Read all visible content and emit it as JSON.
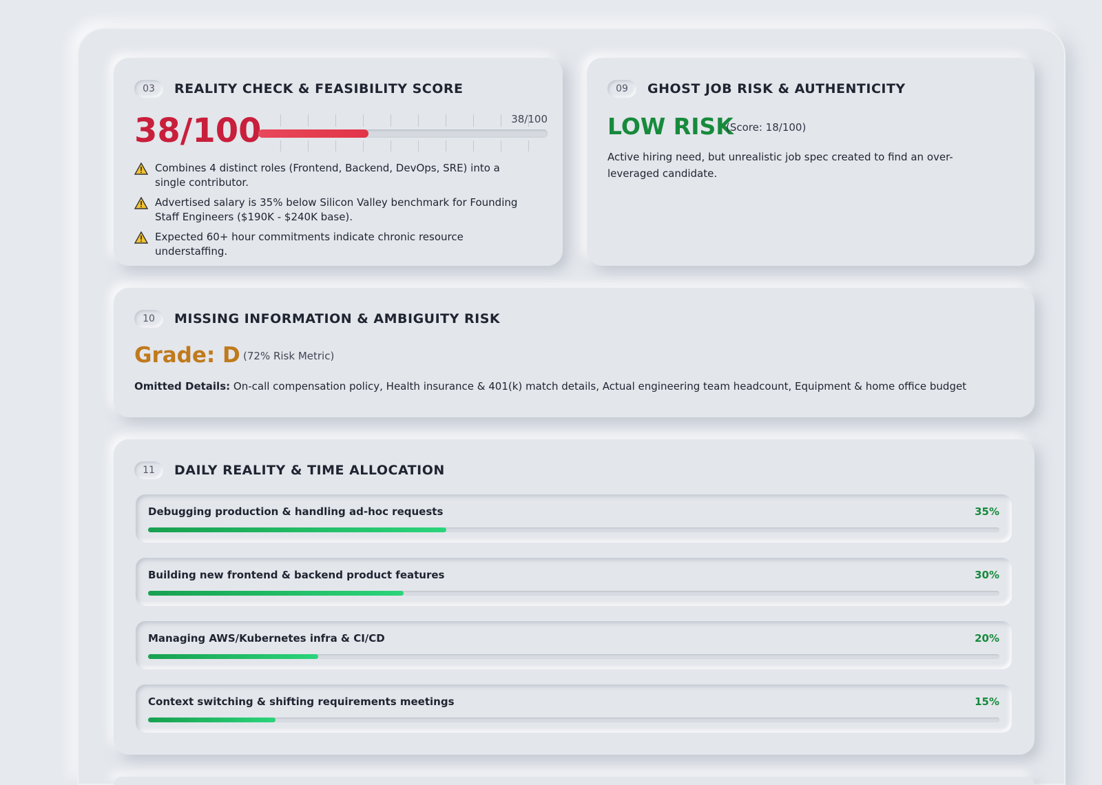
{
  "reality_check": {
    "number": "03",
    "title": "REALITY CHECK & FEASIBILITY SCORE",
    "score": {
      "value": 38,
      "max": 100,
      "label": "38/100"
    },
    "items": [
      "Combines 4 distinct roles (Frontend, Backend, DevOps, SRE) into a single contributor.",
      "Advertised salary is 35% below Silicon Valley benchmark for Founding Staff Engineers ($190K - $240K base).",
      "Expected 60+ hour commitments indicate chronic resource understaffing."
    ]
  },
  "ghost_job": {
    "number": "09",
    "title": "GHOST JOB RISK & AUTHENTICITY",
    "rating": "LOW RISK",
    "score_label": "(Score: 18/100)",
    "description": "Active hiring need, but unrealistic job spec created to find an over-leveraged candidate."
  },
  "missing_info": {
    "number": "10",
    "title": "MISSING INFORMATION & AMBIGUITY RISK",
    "grade": "Grade: D",
    "metric": "(72% Risk Metric)",
    "details_label": "Omitted Details:",
    "details": "On-call compensation policy, Health insurance & 401(k) match details, Actual engineering team headcount, Equipment & home office budget"
  },
  "daily_reality": {
    "number": "11",
    "title": "DAILY REALITY & TIME ALLOCATION",
    "allocations": [
      {
        "task": "Debugging production & handling ad-hoc requests",
        "share": {
          "value": 35,
          "label": "35%"
        }
      },
      {
        "task": "Building new frontend & backend product features",
        "share": {
          "value": 30,
          "label": "30%"
        }
      },
      {
        "task": "Managing AWS/Kubernetes infra & CI/CD",
        "share": {
          "value": 20,
          "label": "20%"
        }
      },
      {
        "task": "Context switching & shifting requirements meetings",
        "share": {
          "value": 15,
          "label": "15%"
        }
      }
    ]
  }
}
